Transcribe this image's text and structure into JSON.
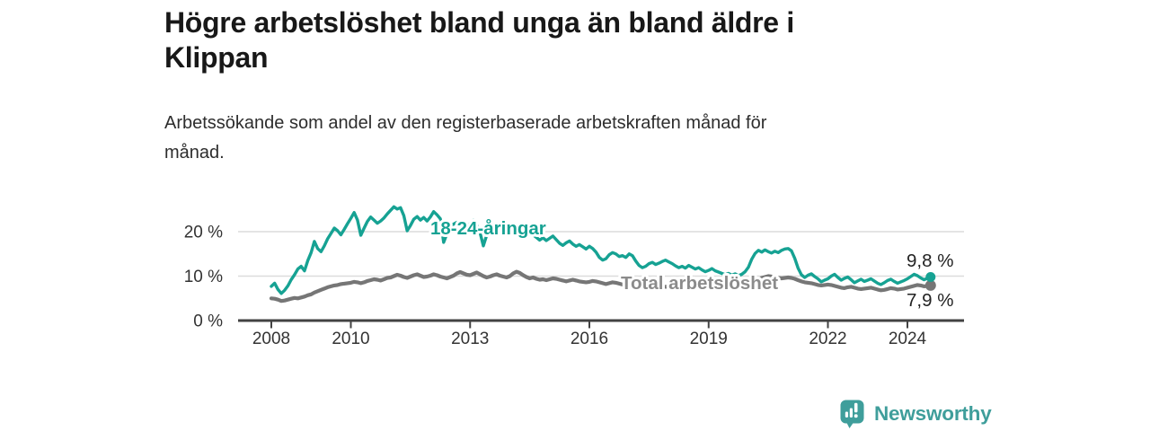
{
  "header": {
    "title": "Högre arbetslöshet bland unga än bland äldre i Klippan",
    "title_lines": [
      "Högre arbetslöshet bland unga än bland äldre i",
      "Klippan"
    ],
    "subtitle": "Arbetssökande som andel av den registerbaserade arbetskraften månad för månad.",
    "subtitle_lines": [
      "Arbetssökande som andel av den registerbaserade arbetskraften månad för",
      "månad."
    ]
  },
  "chart_data": {
    "type": "line",
    "unit": "percent",
    "x_start_year": 2008,
    "x_months": 200,
    "ylim": [
      0,
      26
    ],
    "grid": "horizontal",
    "y_ticks": [
      {
        "value": 0,
        "label": "0 %"
      },
      {
        "value": 10,
        "label": "10 %"
      },
      {
        "value": 20,
        "label": "20 %"
      }
    ],
    "x_ticks": [
      {
        "year": 2008,
        "label": "2008"
      },
      {
        "year": 2010,
        "label": "2010"
      },
      {
        "year": 2013,
        "label": "2013"
      },
      {
        "year": 2016,
        "label": "2016"
      },
      {
        "year": 2019,
        "label": "2019"
      },
      {
        "year": 2022,
        "label": "2022"
      },
      {
        "year": 2024,
        "label": "2024"
      }
    ],
    "series": [
      {
        "name": "18-24-åringar",
        "color": "#16a293",
        "end_label": "9,8 %",
        "end_value": 9.8,
        "values": [
          7.7,
          8.4,
          7.0,
          6.1,
          6.8,
          7.8,
          9.2,
          10.3,
          11.6,
          12.2,
          11.2,
          13.5,
          15.3,
          17.8,
          16.2,
          15.5,
          16.8,
          18.4,
          19.6,
          20.8,
          20.2,
          19.3,
          20.5,
          21.8,
          23.0,
          24.3,
          22.6,
          19.2,
          20.8,
          22.3,
          23.3,
          22.6,
          21.9,
          22.4,
          23.1,
          24.0,
          24.8,
          25.6,
          25.1,
          25.4,
          23.6,
          20.2,
          21.4,
          22.8,
          23.4,
          22.6,
          23.2,
          22.4,
          23.3,
          24.5,
          23.8,
          22.9,
          17.6,
          19.5,
          20.9,
          21.7,
          22.1,
          21.4,
          21.9,
          21.3,
          21.8,
          22.5,
          21.6,
          19.8,
          16.8,
          19.2,
          20.6,
          21.2,
          20.7,
          20.2,
          20.8,
          20.3,
          20.7,
          21.3,
          20.5,
          19.7,
          18.9,
          19.4,
          20.0,
          19.3,
          18.7,
          18.1,
          18.6,
          18.0,
          18.5,
          19.0,
          18.2,
          17.4,
          16.9,
          17.5,
          17.9,
          17.2,
          16.7,
          17.1,
          16.6,
          16.1,
          16.7,
          16.2,
          15.4,
          14.2,
          13.6,
          13.9,
          14.8,
          15.3,
          15.0,
          14.4,
          14.6,
          14.2,
          15.0,
          14.6,
          13.4,
          12.4,
          11.9,
          12.2,
          12.8,
          13.1,
          12.6,
          12.9,
          13.3,
          13.6,
          13.2,
          12.8,
          12.3,
          11.9,
          12.2,
          11.8,
          12.4,
          12.0,
          11.6,
          11.9,
          11.4,
          11.0,
          11.3,
          11.7,
          11.2,
          10.9,
          10.6,
          10.3,
          10.6,
          10.2,
          10.5,
          10.1,
          10.4,
          11.0,
          12.0,
          13.8,
          15.1,
          15.8,
          15.4,
          15.9,
          15.5,
          15.2,
          15.6,
          15.3,
          15.8,
          16.1,
          16.2,
          15.7,
          14.0,
          11.8,
          10.3,
          9.7,
          10.2,
          10.5,
          9.9,
          9.4,
          8.7,
          9.1,
          9.4,
          10.0,
          10.4,
          9.7,
          9.1,
          9.5,
          9.8,
          9.2,
          8.5,
          8.9,
          9.3,
          8.8,
          9.1,
          9.4,
          8.9,
          8.4,
          8.1,
          8.5,
          9.0,
          9.3,
          8.8,
          8.4,
          8.7,
          9.0,
          9.4,
          9.9,
          10.4,
          10.1,
          9.6,
          9.2,
          9.5,
          9.8
        ]
      },
      {
        "name": "Total arbetslöshet",
        "color": "#767676",
        "label_color": "#8b8b8b",
        "end_label": "7,9 %",
        "end_value": 7.9,
        "values": [
          5.0,
          4.9,
          4.7,
          4.4,
          4.5,
          4.7,
          4.9,
          5.1,
          5.0,
          5.2,
          5.4,
          5.7,
          5.9,
          6.3,
          6.6,
          6.9,
          7.2,
          7.5,
          7.7,
          7.9,
          8.0,
          8.2,
          8.3,
          8.4,
          8.5,
          8.7,
          8.6,
          8.4,
          8.6,
          8.9,
          9.1,
          9.3,
          9.2,
          9.0,
          9.3,
          9.6,
          9.7,
          10.0,
          10.3,
          10.1,
          9.8,
          9.6,
          9.9,
          10.2,
          10.4,
          10.1,
          9.8,
          9.9,
          10.1,
          10.4,
          10.2,
          9.9,
          9.7,
          9.5,
          9.8,
          10.1,
          10.6,
          10.9,
          10.6,
          10.3,
          10.2,
          10.5,
          10.8,
          10.4,
          10.0,
          9.7,
          9.9,
          10.2,
          10.4,
          10.1,
          9.9,
          9.7,
          10.0,
          10.6,
          11.0,
          10.7,
          10.2,
          9.8,
          9.5,
          9.7,
          9.4,
          9.2,
          9.3,
          9.1,
          9.3,
          9.5,
          9.4,
          9.2,
          9.0,
          8.8,
          9.0,
          9.2,
          9.0,
          8.8,
          8.7,
          8.6,
          8.7,
          8.9,
          8.8,
          8.6,
          8.4,
          8.2,
          8.4,
          8.6,
          8.5,
          8.3,
          8.1,
          8.0,
          8.1,
          8.3,
          8.2,
          8.0,
          7.8,
          7.7,
          7.9,
          8.1,
          8.0,
          7.8,
          7.7,
          7.6,
          7.7,
          7.9,
          7.8,
          7.6,
          7.4,
          7.3,
          7.5,
          7.7,
          7.6,
          7.4,
          7.3,
          7.2,
          7.4,
          7.6,
          7.5,
          7.3,
          7.2,
          7.3,
          7.6,
          7.8,
          7.7,
          7.5,
          7.4,
          7.5,
          7.7,
          8.0,
          8.6,
          9.2,
          9.6,
          9.8,
          10.0,
          9.9,
          9.7,
          9.6,
          9.5,
          9.6,
          9.7,
          9.6,
          9.4,
          9.1,
          8.8,
          8.6,
          8.5,
          8.4,
          8.2,
          8.0,
          7.9,
          8.0,
          8.1,
          8.0,
          7.8,
          7.6,
          7.4,
          7.3,
          7.5,
          7.6,
          7.4,
          7.2,
          7.1,
          7.2,
          7.3,
          7.4,
          7.2,
          7.0,
          6.8,
          6.9,
          7.1,
          7.3,
          7.2,
          7.0,
          7.1,
          7.2,
          7.4,
          7.6,
          7.8,
          8.0,
          7.9,
          7.7,
          7.8,
          7.9
        ]
      }
    ]
  },
  "footer": {
    "brand": "Newsworthy",
    "brand_color": "#3f9e9b",
    "logo_icon": "bar-chart-speech-bubble-icon"
  },
  "colors": {
    "youth_line": "#16a293",
    "total_line": "#767676",
    "total_label": "#8b8b8b",
    "gridline": "#dcdcdc",
    "axis": "#424242",
    "background": "#ffffff"
  }
}
